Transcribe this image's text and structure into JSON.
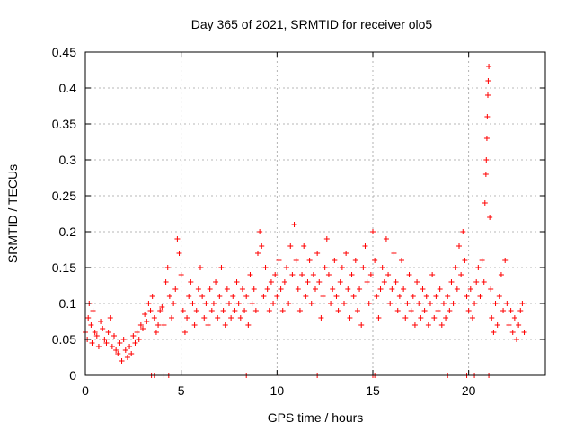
{
  "chart_data": {
    "type": "scatter",
    "title": "Day 365 of 2021, SRMTID for receiver olo5",
    "xlabel": "GPS time / hours",
    "ylabel": "SRMTID / TECUs",
    "xlim": [
      0,
      24
    ],
    "ylim": [
      0,
      0.45
    ],
    "xticks": [
      0,
      5,
      10,
      15,
      20
    ],
    "xtick_labels": [
      "0",
      "5",
      "10",
      "15",
      "20"
    ],
    "yticks": [
      0,
      0.05,
      0.1,
      0.15,
      0.2,
      0.25,
      0.3,
      0.35,
      0.4,
      0.45
    ],
    "ytick_labels": [
      "0",
      "0.05",
      "0.1",
      "0.15",
      "0.2",
      "0.25",
      "0.3",
      "0.35",
      "0.4",
      "0.45"
    ],
    "grid": true,
    "marker": "+",
    "color": "#ff0000",
    "series": [
      {
        "name": "SRMTID",
        "points": [
          [
            0.0,
            0.06
          ],
          [
            0.1,
            0.05
          ],
          [
            0.15,
            0.08
          ],
          [
            0.2,
            0.1
          ],
          [
            0.3,
            0.07
          ],
          [
            0.35,
            0.045
          ],
          [
            0.4,
            0.09
          ],
          [
            0.5,
            0.06
          ],
          [
            0.6,
            0.055
          ],
          [
            0.7,
            0.04
          ],
          [
            0.8,
            0.075
          ],
          [
            0.9,
            0.065
          ],
          [
            1.0,
            0.05
          ],
          [
            1.1,
            0.045
          ],
          [
            1.2,
            0.06
          ],
          [
            1.3,
            0.08
          ],
          [
            1.4,
            0.04
          ],
          [
            1.5,
            0.055
          ],
          [
            1.6,
            0.035
          ],
          [
            1.7,
            0.03
          ],
          [
            1.8,
            0.045
          ],
          [
            1.9,
            0.02
          ],
          [
            2.0,
            0.05
          ],
          [
            2.1,
            0.035
          ],
          [
            2.2,
            0.025
          ],
          [
            2.3,
            0.04
          ],
          [
            2.4,
            0.03
          ],
          [
            2.5,
            0.055
          ],
          [
            2.6,
            0.045
          ],
          [
            2.7,
            0.06
          ],
          [
            2.8,
            0.05
          ],
          [
            2.9,
            0.07
          ],
          [
            3.0,
            0.065
          ],
          [
            3.1,
            0.085
          ],
          [
            3.2,
            0.075
          ],
          [
            3.3,
            0.1
          ],
          [
            3.4,
            0.09
          ],
          [
            3.5,
            0.11
          ],
          [
            3.6,
            0.08
          ],
          [
            3.7,
            0.06
          ],
          [
            3.8,
            0.07
          ],
          [
            3.9,
            0.09
          ],
          [
            4.0,
            0.095
          ],
          [
            4.1,
            0.07
          ],
          [
            4.2,
            0.13
          ],
          [
            4.3,
            0.15
          ],
          [
            4.4,
            0.11
          ],
          [
            4.5,
            0.08
          ],
          [
            4.6,
            0.1
          ],
          [
            4.7,
            0.12
          ],
          [
            4.8,
            0.19
          ],
          [
            4.9,
            0.17
          ],
          [
            5.0,
            0.14
          ],
          [
            5.1,
            0.09
          ],
          [
            5.2,
            0.06
          ],
          [
            5.3,
            0.08
          ],
          [
            5.4,
            0.11
          ],
          [
            5.5,
            0.13
          ],
          [
            5.6,
            0.1
          ],
          [
            5.7,
            0.07
          ],
          [
            5.8,
            0.09
          ],
          [
            5.9,
            0.12
          ],
          [
            6.0,
            0.15
          ],
          [
            6.1,
            0.11
          ],
          [
            6.2,
            0.08
          ],
          [
            6.3,
            0.1
          ],
          [
            6.4,
            0.07
          ],
          [
            6.5,
            0.12
          ],
          [
            6.6,
            0.09
          ],
          [
            6.7,
            0.1
          ],
          [
            6.8,
            0.13
          ],
          [
            6.9,
            0.08
          ],
          [
            7.0,
            0.11
          ],
          [
            7.1,
            0.15
          ],
          [
            7.2,
            0.09
          ],
          [
            7.3,
            0.07
          ],
          [
            7.4,
            0.12
          ],
          [
            7.5,
            0.1
          ],
          [
            7.6,
            0.08
          ],
          [
            7.7,
            0.11
          ],
          [
            7.8,
            0.09
          ],
          [
            7.9,
            0.13
          ],
          [
            8.0,
            0.1
          ],
          [
            8.1,
            0.08
          ],
          [
            8.2,
            0.12
          ],
          [
            8.3,
            0.09
          ],
          [
            8.4,
            0.11
          ],
          [
            8.5,
            0.07
          ],
          [
            8.6,
            0.14
          ],
          [
            8.7,
            0.1
          ],
          [
            8.8,
            0.12
          ],
          [
            8.9,
            0.09
          ],
          [
            9.0,
            0.17
          ],
          [
            9.1,
            0.2
          ],
          [
            9.2,
            0.18
          ],
          [
            9.3,
            0.11
          ],
          [
            9.4,
            0.15
          ],
          [
            9.5,
            0.12
          ],
          [
            9.6,
            0.09
          ],
          [
            9.7,
            0.13
          ],
          [
            9.8,
            0.1
          ],
          [
            9.9,
            0.14
          ],
          [
            10.0,
            0.11
          ],
          [
            10.1,
            0.16
          ],
          [
            10.2,
            0.12
          ],
          [
            10.3,
            0.09
          ],
          [
            10.4,
            0.13
          ],
          [
            10.5,
            0.15
          ],
          [
            10.6,
            0.1
          ],
          [
            10.7,
            0.18
          ],
          [
            10.8,
            0.14
          ],
          [
            10.9,
            0.21
          ],
          [
            11.0,
            0.16
          ],
          [
            11.1,
            0.12
          ],
          [
            11.2,
            0.09
          ],
          [
            11.3,
            0.14
          ],
          [
            11.4,
            0.18
          ],
          [
            11.5,
            0.11
          ],
          [
            11.6,
            0.13
          ],
          [
            11.7,
            0.16
          ],
          [
            11.8,
            0.1
          ],
          [
            11.9,
            0.14
          ],
          [
            12.0,
            0.12
          ],
          [
            12.1,
            0.17
          ],
          [
            12.2,
            0.13
          ],
          [
            12.3,
            0.08
          ],
          [
            12.4,
            0.11
          ],
          [
            12.5,
            0.15
          ],
          [
            12.6,
            0.19
          ],
          [
            12.7,
            0.14
          ],
          [
            12.8,
            0.1
          ],
          [
            12.9,
            0.12
          ],
          [
            13.0,
            0.16
          ],
          [
            13.1,
            0.11
          ],
          [
            13.2,
            0.09
          ],
          [
            13.3,
            0.13
          ],
          [
            13.4,
            0.15
          ],
          [
            13.5,
            0.1
          ],
          [
            13.6,
            0.17
          ],
          [
            13.7,
            0.12
          ],
          [
            13.8,
            0.08
          ],
          [
            13.9,
            0.14
          ],
          [
            14.0,
            0.11
          ],
          [
            14.1,
            0.16
          ],
          [
            14.2,
            0.09
          ],
          [
            14.3,
            0.12
          ],
          [
            14.4,
            0.07
          ],
          [
            14.5,
            0.15
          ],
          [
            14.6,
            0.18
          ],
          [
            14.7,
            0.13
          ],
          [
            14.8,
            0.1
          ],
          [
            14.9,
            0.14
          ],
          [
            15.0,
            0.2
          ],
          [
            15.1,
            0.16
          ],
          [
            15.2,
            0.11
          ],
          [
            15.3,
            0.08
          ],
          [
            15.4,
            0.12
          ],
          [
            15.5,
            0.15
          ],
          [
            15.6,
            0.13
          ],
          [
            15.7,
            0.19
          ],
          [
            15.8,
            0.14
          ],
          [
            15.9,
            0.1
          ],
          [
            16.0,
            0.12
          ],
          [
            16.1,
            0.17
          ],
          [
            16.2,
            0.13
          ],
          [
            16.3,
            0.09
          ],
          [
            16.4,
            0.11
          ],
          [
            16.5,
            0.16
          ],
          [
            16.6,
            0.12
          ],
          [
            16.7,
            0.08
          ],
          [
            16.8,
            0.1
          ],
          [
            16.9,
            0.14
          ],
          [
            17.0,
            0.09
          ],
          [
            17.1,
            0.11
          ],
          [
            17.2,
            0.07
          ],
          [
            17.3,
            0.13
          ],
          [
            17.4,
            0.1
          ],
          [
            17.5,
            0.08
          ],
          [
            17.6,
            0.12
          ],
          [
            17.7,
            0.09
          ],
          [
            17.8,
            0.11
          ],
          [
            17.9,
            0.07
          ],
          [
            18.0,
            0.1
          ],
          [
            18.1,
            0.14
          ],
          [
            18.2,
            0.08
          ],
          [
            18.3,
            0.11
          ],
          [
            18.4,
            0.09
          ],
          [
            18.5,
            0.12
          ],
          [
            18.6,
            0.07
          ],
          [
            18.7,
            0.1
          ],
          [
            18.8,
            0.08
          ],
          [
            18.9,
            0.11
          ],
          [
            19.0,
            0.09
          ],
          [
            19.1,
            0.13
          ],
          [
            19.2,
            0.1
          ],
          [
            19.3,
            0.15
          ],
          [
            19.4,
            0.12
          ],
          [
            19.5,
            0.18
          ],
          [
            19.6,
            0.14
          ],
          [
            19.7,
            0.2
          ],
          [
            19.8,
            0.16
          ],
          [
            19.9,
            0.11
          ],
          [
            20.0,
            0.09
          ],
          [
            20.1,
            0.12
          ],
          [
            20.2,
            0.08
          ],
          [
            20.3,
            0.1
          ],
          [
            20.4,
            0.13
          ],
          [
            20.5,
            0.15
          ],
          [
            20.6,
            0.11
          ],
          [
            20.7,
            0.16
          ],
          [
            20.8,
            0.13
          ],
          [
            20.85,
            0.24
          ],
          [
            20.9,
            0.28
          ],
          [
            20.92,
            0.3
          ],
          [
            20.95,
            0.33
          ],
          [
            20.97,
            0.36
          ],
          [
            21.0,
            0.39
          ],
          [
            21.02,
            0.41
          ],
          [
            21.05,
            0.43
          ],
          [
            21.1,
            0.22
          ],
          [
            21.15,
            0.12
          ],
          [
            21.2,
            0.08
          ],
          [
            21.3,
            0.06
          ],
          [
            21.4,
            0.1
          ],
          [
            21.5,
            0.07
          ],
          [
            21.6,
            0.11
          ],
          [
            21.7,
            0.14
          ],
          [
            21.8,
            0.09
          ],
          [
            21.9,
            0.16
          ],
          [
            22.0,
            0.1
          ],
          [
            22.1,
            0.07
          ],
          [
            22.2,
            0.09
          ],
          [
            22.3,
            0.06
          ],
          [
            22.4,
            0.08
          ],
          [
            22.5,
            0.05
          ],
          [
            22.6,
            0.07
          ],
          [
            22.7,
            0.09
          ],
          [
            22.8,
            0.1
          ],
          [
            22.9,
            0.06
          ],
          [
            3.45,
            0.0
          ],
          [
            3.6,
            0.0
          ],
          [
            4.1,
            0.0
          ],
          [
            4.35,
            0.0
          ],
          [
            8.4,
            0.0
          ],
          [
            10.1,
            0.0
          ],
          [
            12.1,
            0.0
          ],
          [
            15.0,
            0.0
          ],
          [
            15.1,
            0.0
          ],
          [
            18.9,
            0.0
          ],
          [
            19.9,
            0.0
          ],
          [
            20.3,
            0.0
          ],
          [
            21.05,
            0.0
          ]
        ]
      }
    ]
  }
}
